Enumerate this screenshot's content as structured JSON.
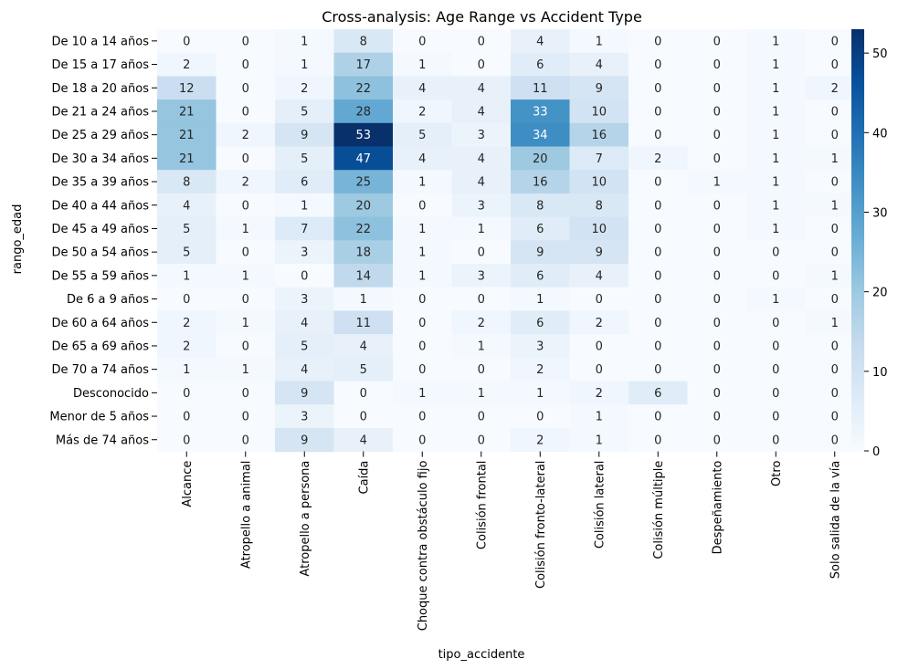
{
  "chart_data": {
    "type": "heatmap",
    "title": "Cross-analysis: Age Range vs Accident Type",
    "xlabel": "tipo_accidente",
    "ylabel": "rango_edad",
    "x_categories": [
      "Alcance",
      "Atropello a animal",
      "Atropello a persona",
      "Caída",
      "Choque contra obstáculo fijo",
      "Colisión frontal",
      "Colisión fronto-lateral",
      "Colisión lateral",
      "Colisión múltiple",
      "Despeñamiento",
      "Otro",
      "Solo salida de la vía"
    ],
    "y_categories": [
      "De 10 a 14 años",
      "De 15 a 17 años",
      "De 18 a 20 años",
      "De 21 a 24 años",
      "De 25 a 29 años",
      "De 30 a 34 años",
      "De 35 a 39 años",
      "De 40 a 44 años",
      "De 45 a 49 años",
      "De 50 a 54 años",
      "De 55 a 59 años",
      "De 6 a 9 años",
      "De 60 a 64 años",
      "De 65 a 69 años",
      "De 70 a 74 años",
      "Desconocido",
      "Menor de 5 años",
      "Más de 74 años"
    ],
    "values": [
      [
        0,
        0,
        1,
        8,
        0,
        0,
        4,
        1,
        0,
        0,
        1,
        0
      ],
      [
        2,
        0,
        1,
        17,
        1,
        0,
        6,
        4,
        0,
        0,
        1,
        0
      ],
      [
        12,
        0,
        2,
        22,
        4,
        4,
        11,
        9,
        0,
        0,
        1,
        2
      ],
      [
        21,
        0,
        5,
        28,
        2,
        4,
        33,
        10,
        0,
        0,
        1,
        0
      ],
      [
        21,
        2,
        9,
        53,
        5,
        3,
        34,
        16,
        0,
        0,
        1,
        0
      ],
      [
        21,
        0,
        5,
        47,
        4,
        4,
        20,
        7,
        2,
        0,
        1,
        1
      ],
      [
        8,
        2,
        6,
        25,
        1,
        4,
        16,
        10,
        0,
        1,
        1,
        0
      ],
      [
        4,
        0,
        1,
        20,
        0,
        3,
        8,
        8,
        0,
        0,
        1,
        1
      ],
      [
        5,
        1,
        7,
        22,
        1,
        1,
        6,
        10,
        0,
        0,
        1,
        0
      ],
      [
        5,
        0,
        3,
        18,
        1,
        0,
        9,
        9,
        0,
        0,
        0,
        0
      ],
      [
        1,
        1,
        0,
        14,
        1,
        3,
        6,
        4,
        0,
        0,
        0,
        1
      ],
      [
        0,
        0,
        3,
        1,
        0,
        0,
        1,
        0,
        0,
        0,
        1,
        0
      ],
      [
        2,
        1,
        4,
        11,
        0,
        2,
        6,
        2,
        0,
        0,
        0,
        1
      ],
      [
        2,
        0,
        5,
        4,
        0,
        1,
        3,
        0,
        0,
        0,
        0,
        0
      ],
      [
        1,
        1,
        4,
        5,
        0,
        0,
        2,
        0,
        0,
        0,
        0,
        0
      ],
      [
        0,
        0,
        9,
        0,
        1,
        1,
        1,
        2,
        6,
        0,
        0,
        0
      ],
      [
        0,
        0,
        3,
        0,
        0,
        0,
        0,
        1,
        0,
        0,
        0,
        0
      ],
      [
        0,
        0,
        9,
        4,
        0,
        0,
        2,
        1,
        0,
        0,
        0,
        0
      ]
    ],
    "colormap": "Blues",
    "vmin": 0,
    "vmax": 53,
    "colorbar_ticks": [
      0,
      10,
      20,
      30,
      40,
      50
    ],
    "colorbar_tick_labels": [
      "0",
      "10",
      "20",
      "30",
      "40",
      "50"
    ],
    "annotations": true,
    "grid": false
  }
}
